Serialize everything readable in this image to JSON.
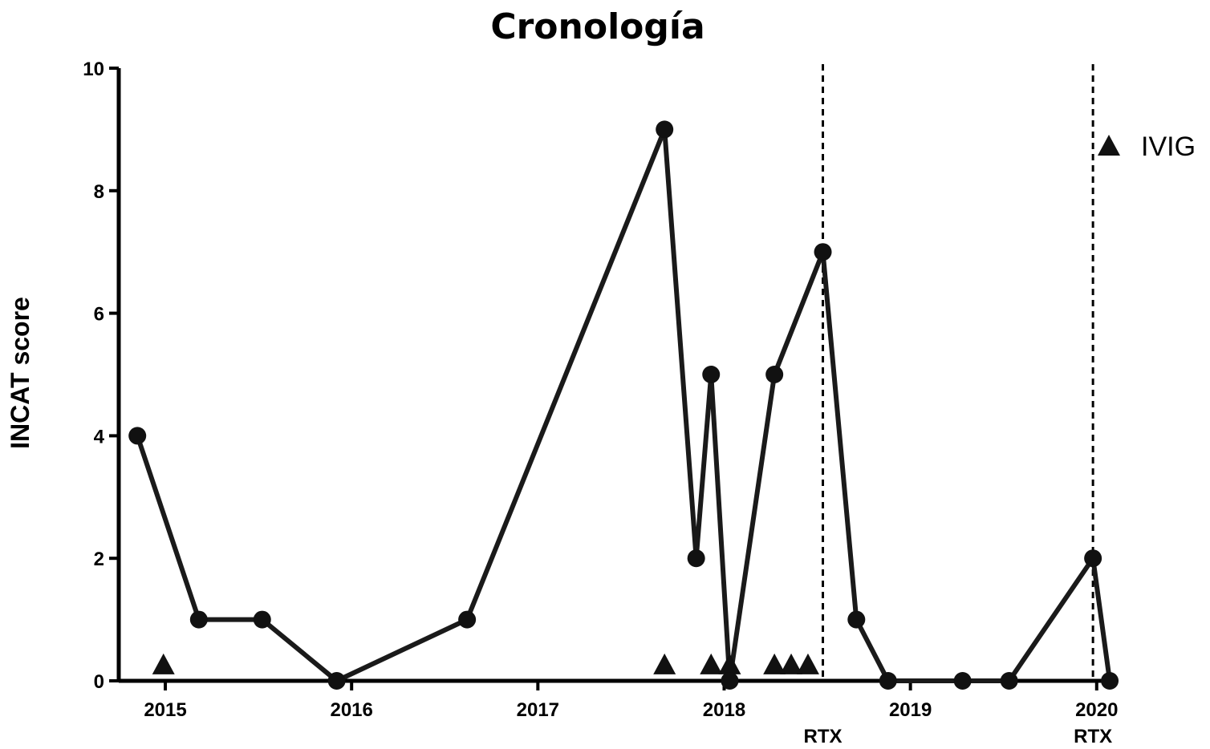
{
  "chart_data": {
    "type": "line",
    "title": "Cronología",
    "xlabel": "",
    "ylabel": "INCAT score",
    "xlim": [
      2014.75,
      2020.1
    ],
    "ylim": [
      0,
      10
    ],
    "x_ticks": [
      2015,
      2016,
      2017,
      2018,
      2019,
      2020
    ],
    "x_tick_labels": [
      "2015",
      "2016",
      "2017",
      "2018",
      "2019",
      "2020"
    ],
    "y_ticks": [
      0,
      2,
      4,
      6,
      8,
      10
    ],
    "y_tick_labels": [
      "0",
      "2",
      "4",
      "6",
      "8",
      "10"
    ],
    "series": [
      {
        "x": [
          2014.85,
          2015.18,
          2015.52,
          2015.92,
          2016.62,
          2017.68,
          2017.85,
          2017.93,
          2018.03,
          2018.27,
          2018.53,
          2018.71,
          2018.88,
          2019.28,
          2019.53,
          2019.98,
          2020.07
        ],
        "y": [
          4,
          1,
          1,
          0,
          1,
          9,
          2,
          5,
          0,
          5,
          7,
          1,
          0,
          0,
          0,
          2,
          0
        ]
      },
      {
        "name": "IVIG",
        "type": "scatter",
        "marker": "triangle",
        "x": [
          2014.99,
          2017.68,
          2017.93,
          2018.03,
          2018.27,
          2018.36,
          2018.45
        ],
        "y": [
          0.25,
          0.25,
          0.25,
          0.25,
          0.25,
          0.25,
          0.25
        ]
      }
    ],
    "vertical_lines": [
      {
        "x": 2018.53,
        "label": "RTX",
        "style": "dashed"
      },
      {
        "x": 2019.98,
        "label": "RTX",
        "style": "dashed"
      }
    ],
    "legend": {
      "position": "top-right",
      "entries": [
        "IVIG"
      ]
    },
    "grid": false,
    "colors": {
      "line": "#1a1a1a",
      "marker": "#111111"
    }
  }
}
